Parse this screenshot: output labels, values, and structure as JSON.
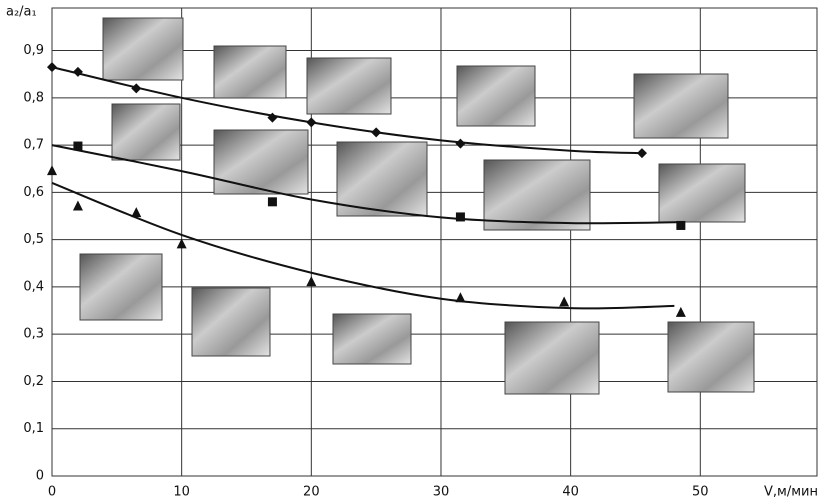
{
  "chart_data": {
    "type": "scatter",
    "y_label": "a₂/a₁",
    "x_label": "V,м/мин",
    "xlim": [
      0,
      59
    ],
    "ylim": [
      0,
      0.99
    ],
    "xticks": [
      0,
      10,
      20,
      30,
      40,
      50
    ],
    "yticks": [
      0,
      {
        "value": 0.1,
        "label": "0,1"
      },
      {
        "value": 0.2,
        "label": "0,2"
      },
      {
        "value": 0.3,
        "label": "0,3"
      },
      {
        "value": 0.4,
        "label": "0,4"
      },
      {
        "value": 0.5,
        "label": "0,5"
      },
      {
        "value": 0.6,
        "label": "0,6"
      },
      {
        "value": 0.7,
        "label": "0,7"
      },
      {
        "value": 0.8,
        "label": "0,8"
      },
      {
        "value": 0.9,
        "label": "0,9"
      }
    ],
    "grid": true,
    "series": [
      {
        "marker": "diamond",
        "color": "#111111",
        "x": [
          0,
          2,
          6.5,
          17,
          20,
          25,
          31.5,
          45.5
        ],
        "values": [
          0.865,
          0.855,
          0.82,
          0.758,
          0.748,
          0.727,
          0.703,
          0.683
        ],
        "curve_x": [
          0,
          10,
          20,
          30,
          40,
          45.5
        ],
        "curve_values": [
          0.865,
          0.8,
          0.748,
          0.71,
          0.688,
          0.683
        ]
      },
      {
        "marker": "square",
        "color": "#111111",
        "x": [
          2,
          17,
          31.5,
          48.5
        ],
        "values": [
          0.698,
          0.58,
          0.548,
          0.53
        ],
        "curve_x": [
          0,
          10,
          20,
          30,
          40,
          48.5
        ],
        "curve_values": [
          0.7,
          0.645,
          0.585,
          0.547,
          0.535,
          0.537
        ]
      },
      {
        "marker": "triangle",
        "color": "#111111",
        "x": [
          0,
          2,
          6.5,
          10,
          20,
          31.5,
          39.5,
          48.5
        ],
        "values": [
          0.645,
          0.57,
          0.556,
          0.49,
          0.41,
          0.376,
          0.367,
          0.345
        ],
        "curve_x": [
          0,
          10,
          20,
          30,
          40,
          48
        ],
        "curve_values": [
          0.62,
          0.51,
          0.43,
          0.375,
          0.355,
          0.36
        ]
      }
    ]
  }
}
